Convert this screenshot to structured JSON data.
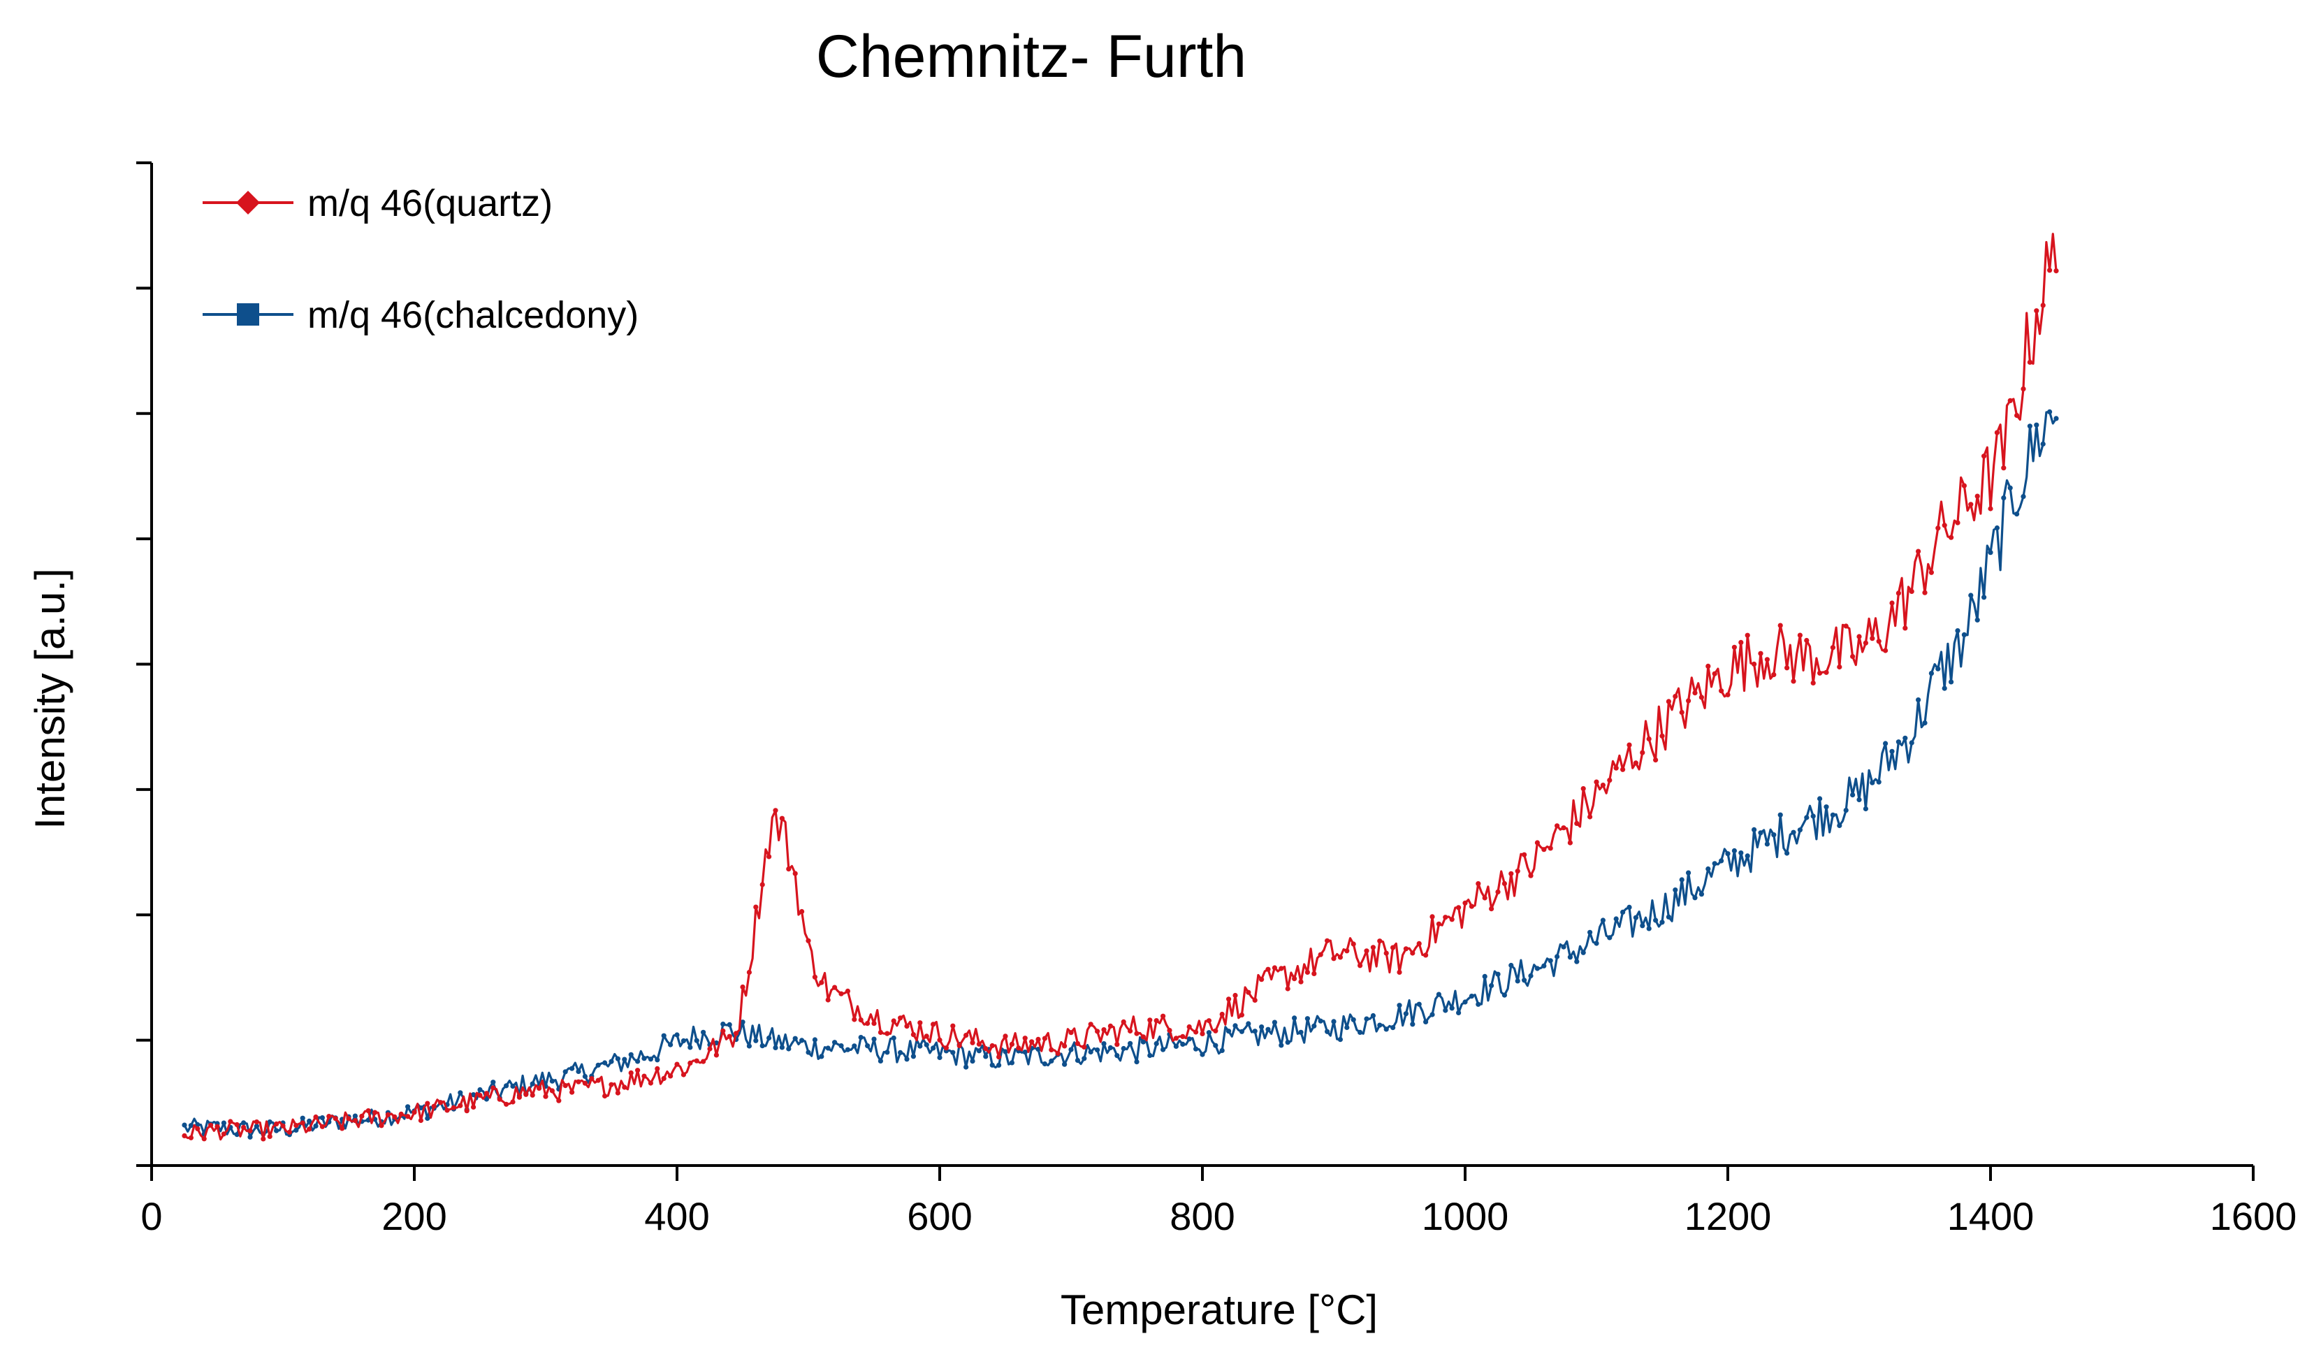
{
  "chart_data": {
    "type": "line",
    "title": "Chemnitz- Furth",
    "xlabel": "Temperature  [°C]",
    "ylabel": "Intensity [a.u.]",
    "xlim": [
      0,
      1600
    ],
    "ylim": [
      0,
      8
    ],
    "x_ticks": [
      "0",
      "200",
      "400",
      "600",
      "800",
      "1000",
      "1200",
      "1400",
      "1600"
    ],
    "x_tick_values": [
      0,
      200,
      400,
      600,
      800,
      1000,
      1200,
      1400,
      1600
    ],
    "y_tick_count": 9,
    "y_tick_labels_shown": false,
    "grid": false,
    "legend_position": "top-left",
    "series": [
      {
        "name": "m/q 46(quartz)",
        "color": "#d7141e",
        "marker": "diamond",
        "x": [
          25,
          50,
          80,
          110,
          140,
          170,
          200,
          230,
          260,
          290,
          320,
          350,
          380,
          410,
          430,
          445,
          455,
          465,
          472,
          480,
          490,
          500,
          515,
          530,
          560,
          600,
          650,
          700,
          750,
          800,
          850,
          900,
          950,
          1000,
          1050,
          1100,
          1130,
          1160,
          1200,
          1230,
          1260,
          1300,
          1320,
          1340,
          1360,
          1380,
          1400,
          1410,
          1420,
          1430,
          1440,
          1450
        ],
        "values": [
          0.25,
          0.28,
          0.28,
          0.3,
          0.34,
          0.38,
          0.42,
          0.48,
          0.54,
          0.6,
          0.6,
          0.65,
          0.72,
          0.8,
          0.95,
          1.05,
          1.6,
          2.3,
          2.75,
          2.7,
          2.3,
          1.7,
          1.4,
          1.3,
          1.15,
          1.05,
          0.95,
          1.0,
          1.1,
          1.1,
          1.45,
          1.7,
          1.65,
          2.05,
          2.4,
          2.95,
          3.3,
          3.6,
          3.95,
          4.1,
          4.05,
          4.1,
          4.3,
          4.6,
          5.0,
          5.25,
          5.5,
          5.7,
          6.1,
          6.6,
          7.0,
          7.25
        ]
      },
      {
        "name": "m/q 46(chalcedony)",
        "color": "#0e4f8c",
        "marker": "square",
        "x": [
          25,
          50,
          80,
          110,
          140,
          170,
          200,
          230,
          260,
          290,
          320,
          350,
          380,
          410,
          440,
          470,
          500,
          550,
          600,
          650,
          700,
          750,
          800,
          850,
          900,
          950,
          1000,
          1050,
          1100,
          1150,
          1200,
          1250,
          1280,
          1300,
          1320,
          1340,
          1360,
          1380,
          1400,
          1420,
          1440,
          1450
        ],
        "values": [
          0.3,
          0.3,
          0.28,
          0.3,
          0.35,
          0.38,
          0.43,
          0.5,
          0.58,
          0.66,
          0.72,
          0.8,
          0.9,
          1.02,
          1.08,
          1.0,
          0.95,
          0.93,
          0.9,
          0.85,
          0.9,
          0.92,
          0.98,
          1.05,
          1.1,
          1.2,
          1.35,
          1.55,
          1.8,
          2.05,
          2.4,
          2.7,
          2.85,
          2.95,
          3.2,
          3.45,
          3.9,
          4.2,
          4.8,
          5.4,
          5.9,
          6.0
        ]
      }
    ]
  }
}
